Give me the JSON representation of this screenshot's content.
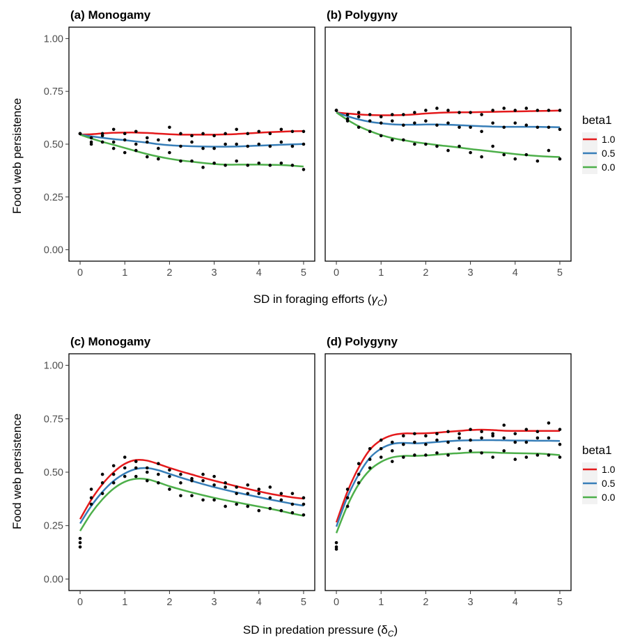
{
  "figure": {
    "rows": [
      {
        "xlabel_main": "SD in foraging efforts (",
        "xlabel_symbol": "γ",
        "xlabel_sub": "C",
        "xlabel_end": ")"
      },
      {
        "xlabel_main": "SD in predation pressure (",
        "xlabel_symbol": "δ",
        "xlabel_sub": "C",
        "xlabel_end": ")"
      }
    ],
    "ylabel": "Food web persistence",
    "legend": {
      "title": "beta1",
      "entries": [
        {
          "label": "1.0",
          "color": "#e41a1c"
        },
        {
          "label": "0.5",
          "color": "#377eb8"
        },
        {
          "label": "0.0",
          "color": "#4daf4a"
        }
      ]
    },
    "point_color": "#000000"
  },
  "chart_data": [
    {
      "type": "scatter",
      "title": "(a) Monogamy",
      "xlim": [
        0,
        5
      ],
      "ylim": [
        0,
        1
      ],
      "xticks": [
        "0",
        "1",
        "2",
        "3",
        "4",
        "5"
      ],
      "yticks": [
        "0.00",
        "0.25",
        "0.50",
        "0.75",
        "1.00"
      ],
      "x": [
        0,
        0.25,
        0.5,
        0.75,
        1,
        1.25,
        1.5,
        1.75,
        2,
        2.25,
        2.5,
        2.75,
        3,
        3.25,
        3.5,
        3.75,
        4,
        4.25,
        4.5,
        4.75,
        5
      ],
      "series": [
        {
          "name": "1.0",
          "points": [
            0.55,
            0.51,
            0.55,
            0.57,
            0.55,
            0.56,
            0.53,
            0.52,
            0.58,
            0.55,
            0.54,
            0.55,
            0.54,
            0.55,
            0.57,
            0.55,
            0.56,
            0.55,
            0.57,
            0.56,
            0.56
          ],
          "trend": [
            0.545,
            0.547,
            0.551,
            0.554,
            0.555,
            0.555,
            0.553,
            0.55,
            0.547,
            0.545,
            0.545,
            0.545,
            0.545,
            0.546,
            0.548,
            0.551,
            0.554,
            0.557,
            0.559,
            0.561,
            0.562
          ]
        },
        {
          "name": "0.5",
          "points": [
            0.55,
            0.53,
            0.54,
            0.51,
            0.52,
            0.5,
            0.51,
            0.48,
            0.52,
            0.49,
            0.51,
            0.48,
            0.48,
            0.5,
            0.5,
            0.49,
            0.5,
            0.49,
            0.51,
            0.49,
            0.5
          ],
          "trend": [
            0.545,
            0.537,
            0.53,
            0.524,
            0.519,
            0.513,
            0.507,
            0.5,
            0.495,
            0.492,
            0.49,
            0.489,
            0.488,
            0.488,
            0.489,
            0.491,
            0.493,
            0.495,
            0.497,
            0.499,
            0.501
          ]
        },
        {
          "name": "0.0",
          "points": [
            0.55,
            0.5,
            0.51,
            0.48,
            0.46,
            0.47,
            0.44,
            0.43,
            0.46,
            0.42,
            0.42,
            0.39,
            0.41,
            0.4,
            0.42,
            0.4,
            0.41,
            0.4,
            0.41,
            0.4,
            0.38
          ],
          "trend": [
            0.545,
            0.527,
            0.511,
            0.497,
            0.482,
            0.467,
            0.453,
            0.441,
            0.431,
            0.423,
            0.417,
            0.411,
            0.406,
            0.403,
            0.403,
            0.403,
            0.403,
            0.402,
            0.401,
            0.398,
            0.394
          ]
        }
      ]
    },
    {
      "type": "scatter",
      "title": "(b) Polygyny",
      "xlim": [
        0,
        5
      ],
      "ylim": [
        0,
        1
      ],
      "xticks": [
        "0",
        "1",
        "2",
        "3",
        "4",
        "5"
      ],
      "yticks": [],
      "x": [
        0,
        0.25,
        0.5,
        0.75,
        1,
        1.25,
        1.5,
        1.75,
        2,
        2.25,
        2.5,
        2.75,
        3,
        3.25,
        3.5,
        3.75,
        4,
        4.25,
        4.5,
        4.75,
        5
      ],
      "series": [
        {
          "name": "1.0",
          "points": [
            0.66,
            0.64,
            0.65,
            0.64,
            0.63,
            0.64,
            0.64,
            0.65,
            0.66,
            0.67,
            0.66,
            0.65,
            0.65,
            0.64,
            0.66,
            0.67,
            0.66,
            0.67,
            0.66,
            0.66,
            0.66
          ],
          "trend": [
            0.65,
            0.645,
            0.641,
            0.638,
            0.637,
            0.637,
            0.638,
            0.641,
            0.645,
            0.648,
            0.65,
            0.651,
            0.651,
            0.652,
            0.653,
            0.654,
            0.655,
            0.656,
            0.657,
            0.658,
            0.659
          ]
        },
        {
          "name": "0.5",
          "points": [
            0.66,
            0.62,
            0.63,
            0.61,
            0.6,
            0.61,
            0.59,
            0.6,
            0.61,
            0.59,
            0.6,
            0.58,
            0.58,
            0.56,
            0.6,
            0.58,
            0.6,
            0.59,
            0.58,
            0.58,
            0.57
          ],
          "trend": [
            0.65,
            0.632,
            0.617,
            0.606,
            0.599,
            0.594,
            0.592,
            0.592,
            0.593,
            0.593,
            0.592,
            0.59,
            0.587,
            0.585,
            0.583,
            0.582,
            0.582,
            0.582,
            0.582,
            0.581,
            0.58
          ]
        },
        {
          "name": "0.0",
          "points": [
            0.66,
            0.61,
            0.58,
            0.56,
            0.54,
            0.52,
            0.52,
            0.5,
            0.5,
            0.49,
            0.47,
            0.49,
            0.46,
            0.44,
            0.49,
            0.45,
            0.43,
            0.45,
            0.42,
            0.47,
            0.43
          ],
          "trend": [
            0.65,
            0.615,
            0.585,
            0.562,
            0.543,
            0.529,
            0.519,
            0.51,
            0.503,
            0.496,
            0.49,
            0.484,
            0.477,
            0.471,
            0.465,
            0.459,
            0.453,
            0.448,
            0.444,
            0.441,
            0.439
          ]
        }
      ]
    },
    {
      "type": "scatter",
      "title": "(c) Monogamy",
      "xlim": [
        0,
        5
      ],
      "ylim": [
        0,
        1
      ],
      "xticks": [
        "0",
        "1",
        "2",
        "3",
        "4",
        "5"
      ],
      "yticks": [
        "0.00",
        "0.25",
        "0.50",
        "0.75",
        "1.00"
      ],
      "x": [
        0,
        0.25,
        0.5,
        0.75,
        1,
        1.25,
        1.5,
        1.75,
        2,
        2.25,
        2.5,
        2.75,
        3,
        3.25,
        3.5,
        3.75,
        4,
        4.25,
        4.5,
        4.75,
        5
      ],
      "series": [
        {
          "name": "1.0",
          "points": [
            0.19,
            0.42,
            0.49,
            0.53,
            0.57,
            0.55,
            0.52,
            0.54,
            0.51,
            0.49,
            0.47,
            0.49,
            0.48,
            0.45,
            0.43,
            0.44,
            0.42,
            0.43,
            0.4,
            0.4,
            0.38
          ],
          "trend": [
            0.28,
            0.371,
            0.444,
            0.5,
            0.539,
            0.557,
            0.554,
            0.538,
            0.52,
            0.504,
            0.489,
            0.474,
            0.46,
            0.447,
            0.434,
            0.422,
            0.41,
            0.399,
            0.39,
            0.382,
            0.376
          ]
        },
        {
          "name": "0.5",
          "points": [
            0.17,
            0.38,
            0.45,
            0.49,
            0.52,
            0.52,
            0.5,
            0.49,
            0.48,
            0.45,
            0.46,
            0.46,
            0.44,
            0.43,
            0.4,
            0.4,
            0.4,
            0.38,
            0.37,
            0.35,
            0.35
          ],
          "trend": [
            0.26,
            0.342,
            0.408,
            0.459,
            0.494,
            0.515,
            0.519,
            0.509,
            0.492,
            0.475,
            0.459,
            0.444,
            0.43,
            0.417,
            0.405,
            0.394,
            0.383,
            0.372,
            0.362,
            0.352,
            0.343
          ]
        },
        {
          "name": "0.0",
          "points": [
            0.15,
            0.35,
            0.4,
            0.45,
            0.48,
            0.48,
            0.46,
            0.45,
            0.42,
            0.39,
            0.39,
            0.37,
            0.37,
            0.34,
            0.35,
            0.34,
            0.32,
            0.33,
            0.32,
            0.31,
            0.3
          ],
          "trend": [
            0.225,
            0.308,
            0.373,
            0.423,
            0.455,
            0.469,
            0.467,
            0.452,
            0.434,
            0.419,
            0.405,
            0.392,
            0.38,
            0.369,
            0.359,
            0.349,
            0.339,
            0.329,
            0.318,
            0.306,
            0.296
          ]
        }
      ]
    },
    {
      "type": "scatter",
      "title": "(d) Polygyny",
      "xlim": [
        0,
        5
      ],
      "ylim": [
        0,
        1
      ],
      "xticks": [
        "0",
        "1",
        "2",
        "3",
        "4",
        "5"
      ],
      "yticks": [],
      "x": [
        0,
        0.25,
        0.5,
        0.75,
        1,
        1.25,
        1.5,
        1.75,
        2,
        2.25,
        2.5,
        2.75,
        3,
        3.25,
        3.5,
        3.75,
        4,
        4.25,
        4.5,
        4.75,
        5
      ],
      "series": [
        {
          "name": "1.0",
          "points": [
            0.17,
            0.42,
            0.54,
            0.61,
            0.65,
            0.64,
            0.67,
            0.68,
            0.67,
            0.68,
            0.69,
            0.68,
            0.7,
            0.69,
            0.68,
            0.72,
            0.68,
            0.7,
            0.69,
            0.73,
            0.7
          ],
          "trend": [
            0.265,
            0.41,
            0.522,
            0.605,
            0.65,
            0.673,
            0.681,
            0.681,
            0.682,
            0.685,
            0.689,
            0.693,
            0.697,
            0.699,
            0.697,
            0.694,
            0.693,
            0.693,
            0.693,
            0.693,
            0.693
          ]
        },
        {
          "name": "0.5",
          "points": [
            0.15,
            0.38,
            0.49,
            0.56,
            0.61,
            0.6,
            0.63,
            0.64,
            0.63,
            0.65,
            0.64,
            0.66,
            0.65,
            0.66,
            0.67,
            0.66,
            0.64,
            0.64,
            0.66,
            0.66,
            0.63
          ],
          "trend": [
            0.245,
            0.385,
            0.49,
            0.567,
            0.61,
            0.632,
            0.637,
            0.635,
            0.637,
            0.641,
            0.645,
            0.648,
            0.649,
            0.65,
            0.65,
            0.649,
            0.648,
            0.648,
            0.647,
            0.647,
            0.646
          ]
        },
        {
          "name": "0.0",
          "points": [
            0.14,
            0.34,
            0.45,
            0.52,
            0.57,
            0.55,
            0.57,
            0.58,
            0.58,
            0.59,
            0.58,
            0.61,
            0.6,
            0.59,
            0.57,
            0.6,
            0.56,
            0.57,
            0.58,
            0.58,
            0.57
          ],
          "trend": [
            0.215,
            0.345,
            0.444,
            0.51,
            0.548,
            0.569,
            0.576,
            0.576,
            0.578,
            0.582,
            0.586,
            0.589,
            0.592,
            0.593,
            0.592,
            0.59,
            0.589,
            0.588,
            0.587,
            0.584,
            0.58
          ]
        }
      ]
    }
  ]
}
